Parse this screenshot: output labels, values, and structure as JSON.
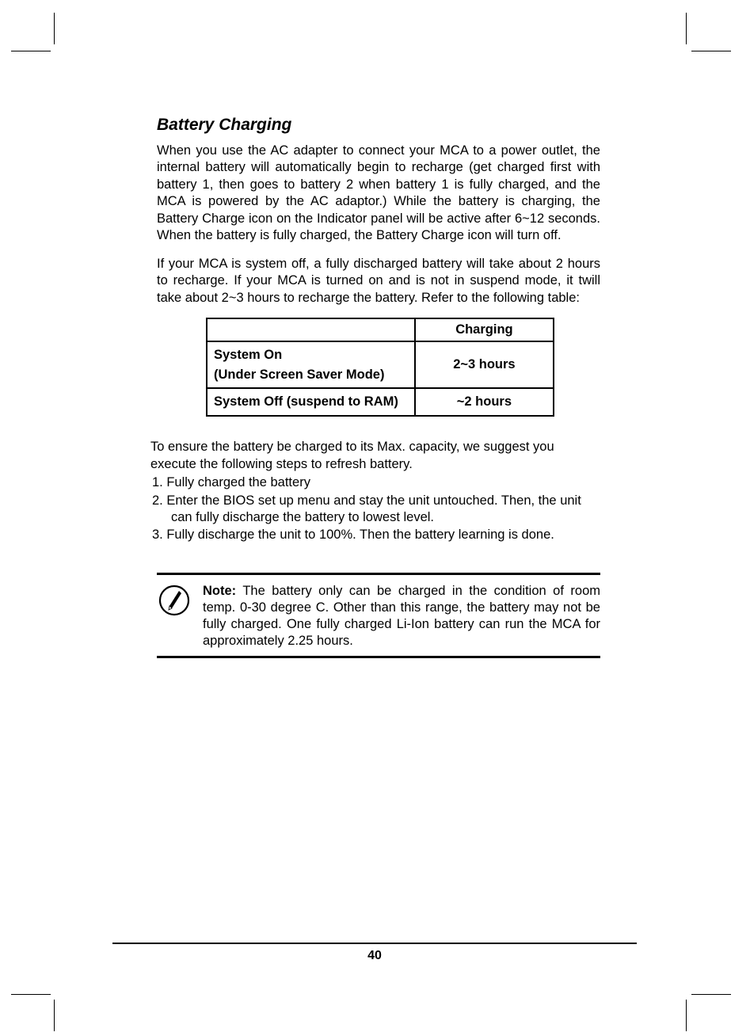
{
  "heading": "Battery Charging",
  "para1": "When you use the AC adapter to connect your MCA to a power outlet, the internal battery will automatically begin to recharge (get charged first with battery 1, then goes to battery 2 when battery 1 is fully charged, and the MCA is powered by the AC adaptor.) While the battery is charging, the Battery Charge icon on the Indicator panel will be active after 6~12 seconds. When the battery is fully charged, the Battery Charge icon will turn off.",
  "para2": "If your MCA is system off, a fully discharged battery will take about 2 hours to recharge. If your MCA is turned on and is not in suspend mode, it twill take about 2~3 hours to recharge the battery. Refer to the following table:",
  "table": {
    "header_col": "Charging",
    "rows": [
      {
        "label_line1": "System On",
        "label_line2": "(Under Screen Saver Mode)",
        "value": "2~3  hours"
      },
      {
        "label_line1": "System Off (suspend to RAM)",
        "label_line2": "",
        "value": "~2 hours"
      }
    ]
  },
  "para3a": "To ensure the battery be charged to its Max. capacity, we suggest you execute the following steps to refresh battery.",
  "steps": [
    {
      "num": "1.",
      "text": "Fully charged the battery"
    },
    {
      "num": "2.",
      "text": "Enter the BIOS set up menu and stay the unit untouched. Then, the unit can fully discharge the battery to lowest level."
    },
    {
      "num": "3.",
      "text": "Fully discharge the unit to 100%. Then the battery learning is done."
    }
  ],
  "note_label": "Note:",
  "note_text": " The battery only can be charged in the condition of room temp. 0-30 degree C. Other than this range, the battery may not be fully charged. One fully charged Li-Ion battery can run the MCA for approximately 2.25 hours.",
  "page_number": "40"
}
